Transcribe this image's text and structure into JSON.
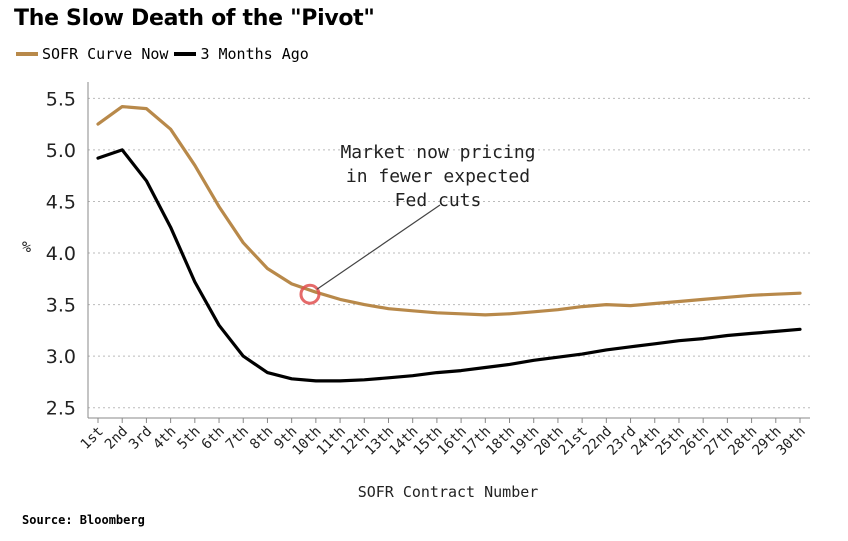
{
  "title": "The Slow Death of the \"Pivot\"",
  "source": "Source: Bloomberg",
  "colors": {
    "now": "#b8894a",
    "ago": "#000000",
    "grid": "#bbbbbb",
    "marker": "#e05050"
  },
  "chart_data": {
    "type": "line",
    "title": "The Slow Death of the \"Pivot\"",
    "xlabel": "SOFR Contract Number",
    "ylabel": "%",
    "ylim": [
      2.4,
      5.6
    ],
    "yticks": [
      "2.5",
      "3.0",
      "3.5",
      "4.0",
      "4.5",
      "5.0",
      "5.5"
    ],
    "grid": true,
    "legend_position": "top-left",
    "categories": [
      "1st",
      "2nd",
      "3rd",
      "4th",
      "5th",
      "6th",
      "7th",
      "8th",
      "9th",
      "10th",
      "11th",
      "12th",
      "13th",
      "14th",
      "15th",
      "16th",
      "17th",
      "18th",
      "19th",
      "20th",
      "21st",
      "22nd",
      "23rd",
      "24th",
      "25th",
      "26th",
      "27th",
      "28th",
      "29th",
      "30th"
    ],
    "series": [
      {
        "name": "SOFR Curve Now",
        "values": [
          5.25,
          5.42,
          5.4,
          5.2,
          4.85,
          4.45,
          4.1,
          3.85,
          3.7,
          3.62,
          3.55,
          3.5,
          3.46,
          3.44,
          3.42,
          3.41,
          3.4,
          3.41,
          3.43,
          3.45,
          3.48,
          3.5,
          3.49,
          3.51,
          3.53,
          3.55,
          3.57,
          3.59,
          3.6,
          3.61
        ]
      },
      {
        "name": "3 Months Ago",
        "values": [
          4.92,
          5.0,
          4.7,
          4.25,
          3.72,
          3.3,
          3.0,
          2.84,
          2.78,
          2.76,
          2.76,
          2.77,
          2.79,
          2.81,
          2.84,
          2.86,
          2.89,
          2.92,
          2.96,
          2.99,
          3.02,
          3.06,
          3.09,
          3.12,
          3.15,
          3.17,
          3.2,
          3.22,
          3.24,
          3.26
        ]
      }
    ],
    "annotation": {
      "lines": [
        "Market now pricing",
        "in fewer expected",
        "Fed cuts"
      ],
      "category": "10th",
      "value": 3.6
    }
  }
}
